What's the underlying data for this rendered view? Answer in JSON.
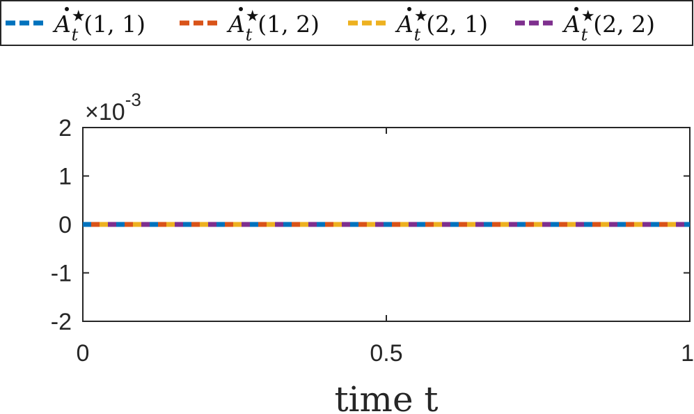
{
  "chart_data": {
    "type": "line",
    "x": [
      0,
      1
    ],
    "xlim": [
      0,
      1
    ],
    "ylim": [
      -0.002,
      0.002
    ],
    "y_multiplier_label": {
      "base": "×10",
      "exponent": "-3"
    },
    "x_ticks": [
      "0",
      "0.5",
      "1"
    ],
    "y_ticks": [
      "2",
      "1",
      "0",
      "-1",
      "-2"
    ],
    "xlabel": "time   t",
    "ylabel": "",
    "grid": false,
    "legend_position": "top",
    "line_style": "dashed",
    "series": [
      {
        "name": "Ȧ★t(1, 1)",
        "label_main": "A",
        "label_sup": "★",
        "label_sub": "t",
        "label_args": "(1, 1)",
        "color": "#0072BD",
        "values": [
          0,
          0
        ]
      },
      {
        "name": "Ȧ★t(1, 2)",
        "label_main": "A",
        "label_sup": "★",
        "label_sub": "t",
        "label_args": "(1, 2)",
        "color": "#D95319",
        "values": [
          0,
          0
        ]
      },
      {
        "name": "Ȧ★t(2, 1)",
        "label_main": "A",
        "label_sup": "★",
        "label_sub": "t",
        "label_args": "(2, 1)",
        "color": "#EDB120",
        "values": [
          0,
          0
        ]
      },
      {
        "name": "Ȧ★t(2, 2)",
        "label_main": "A",
        "label_sup": "★",
        "label_sub": "t",
        "label_args": "(2, 2)",
        "color": "#7E2F8E",
        "values": [
          0,
          0
        ]
      }
    ]
  }
}
